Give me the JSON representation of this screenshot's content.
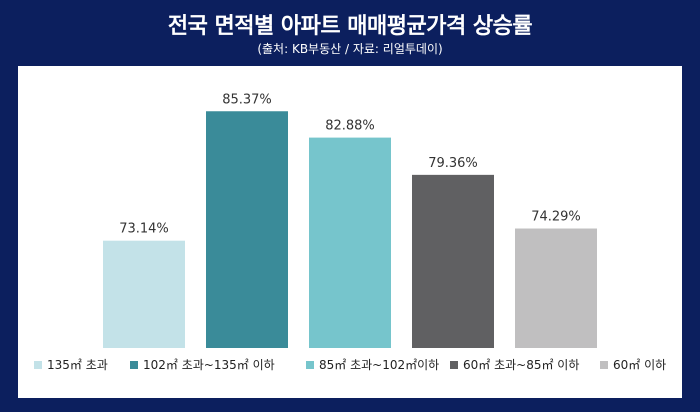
{
  "header": {
    "title": "전국 면적별 아파트 매매평균가격 상승률",
    "subtitle": "(출처: KB부동산 / 자료: 리얼투데이)"
  },
  "chart_data": {
    "type": "bar",
    "title": "전국 면적별 아파트 매매평균가격 상승률",
    "subtitle": "(출처: KB부동산 / 자료: 리얼투데이)",
    "categories": [
      "135㎡ 초과",
      "102㎡ 초과~135㎡ 이하",
      "85㎡ 초과~102㎡이하",
      "60㎡ 초과~85㎡ 이하",
      "60㎡ 이하"
    ],
    "values": [
      73.14,
      85.37,
      82.88,
      79.36,
      74.29
    ],
    "value_labels": [
      "73.14%",
      "85.37%",
      "82.88%",
      "79.36%",
      "74.29%"
    ],
    "colors": [
      "#c3e2e8",
      "#3a8b99",
      "#76c5cc",
      "#606062",
      "#c0bfc0"
    ],
    "ylim": [
      63,
      87
    ],
    "grid": false,
    "legend_position": "bottom",
    "xlabel": "",
    "ylabel": ""
  }
}
